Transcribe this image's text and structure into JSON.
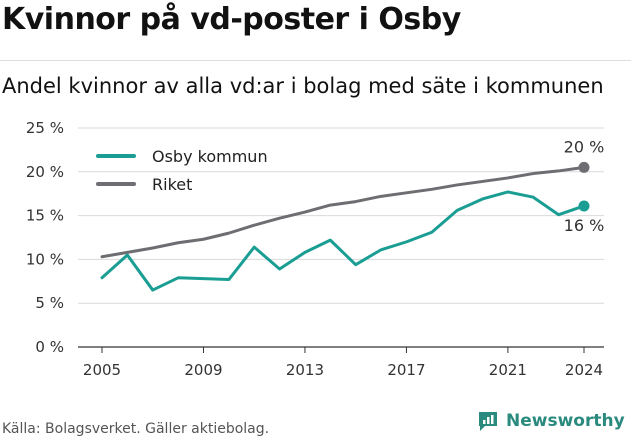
{
  "title": "Kvinnor på vd-poster i Osby",
  "subtitle": "Andel kvinnor av alla vd:ar i bolag med säte i kommunen",
  "source": "Källa: Bolagsverket. Gäller aktiebolag.",
  "brand": "Newsworthy",
  "colors": {
    "osby": "#1a9e93",
    "riket": "#6e6e72",
    "grid": "#d9d9d9",
    "axis": "#333333"
  },
  "chart_data": {
    "type": "line",
    "x": [
      2005,
      2006,
      2007,
      2008,
      2009,
      2010,
      2011,
      2012,
      2013,
      2014,
      2015,
      2016,
      2017,
      2018,
      2019,
      2020,
      2021,
      2022,
      2023,
      2024
    ],
    "series": [
      {
        "name": "Osby kommun",
        "values": [
          7.9,
          10.5,
          6.5,
          7.9,
          7.8,
          7.7,
          11.4,
          8.9,
          10.8,
          12.2,
          9.4,
          11.1,
          12.0,
          13.1,
          15.6,
          16.9,
          17.7,
          17.1,
          15.1,
          16.1
        ]
      },
      {
        "name": "Riket",
        "values": [
          10.3,
          10.8,
          11.3,
          11.9,
          12.3,
          13.0,
          13.9,
          14.7,
          15.4,
          16.2,
          16.6,
          17.2,
          17.6,
          18.0,
          18.5,
          18.9,
          19.3,
          19.8,
          20.1,
          20.5
        ]
      }
    ],
    "xticks": [
      "2005",
      "2009",
      "2013",
      "2017",
      "2021",
      "2024"
    ],
    "yticks": [
      "0 %",
      "5 %",
      "10 %",
      "15 %",
      "20 %",
      "25 %"
    ],
    "ylim": [
      0,
      25
    ],
    "end_labels": {
      "riket": "20 %",
      "osby": "16 %"
    },
    "legend": "top-left",
    "grid": true
  }
}
